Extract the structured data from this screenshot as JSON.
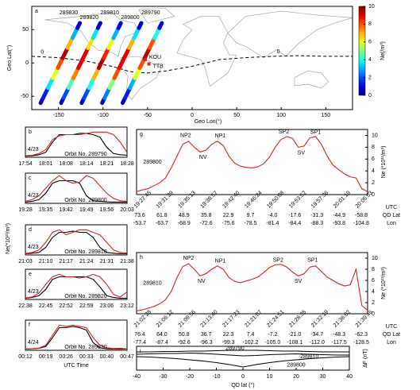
{
  "chart_data": [
    {
      "type": "map",
      "label": "a",
      "xlabel": "Geo Lon(°)",
      "ylabel": "Geo Lat(°)",
      "xlim": [
        -180,
        180
      ],
      "ylim": [
        -70,
        85
      ],
      "xticks": [
        -150,
        -100,
        -50,
        0,
        50,
        100,
        150
      ],
      "yticks": [
        -50,
        0,
        50
      ],
      "series": [
        {
          "name": "289830",
          "x": [
            -170,
            -164.5,
            -159,
            -153.5,
            -148,
            -142.5,
            -137,
            -131.5,
            -126
          ],
          "y": [
            -60,
            -45,
            -30,
            -15,
            0,
            15,
            30,
            45,
            60
          ],
          "ne": [
            0.5,
            1.5,
            3.5,
            6,
            8,
            9.5,
            7,
            3,
            1
          ]
        },
        {
          "name": "289820",
          "x": [
            -147,
            -141.5,
            -136,
            -130.5,
            -125,
            -119.5,
            -114,
            -108.5,
            -103
          ],
          "y": [
            -60,
            -45,
            -30,
            -15,
            0,
            15,
            30,
            45,
            60
          ],
          "ne": [
            0.5,
            2,
            4.5,
            7.5,
            9,
            9,
            6.5,
            3.5,
            0.8
          ]
        },
        {
          "name": "289810",
          "x": [
            -124,
            -118.5,
            -113,
            -107.5,
            -102,
            -96.5,
            -91,
            -85.5,
            -80
          ],
          "y": [
            -60,
            -45,
            -30,
            -15,
            0,
            15,
            30,
            45,
            60
          ],
          "ne": [
            0.6,
            2,
            4,
            7,
            9.5,
            8.5,
            6,
            3,
            1
          ]
        },
        {
          "name": "289800",
          "x": [
            -101,
            -95.5,
            -90,
            -84.5,
            -79,
            -73.5,
            -68,
            -62.5,
            -57
          ],
          "y": [
            -60,
            -45,
            -30,
            -15,
            0,
            15,
            30,
            45,
            60
          ],
          "ne": [
            0.5,
            2.5,
            5,
            8,
            9,
            9,
            7,
            3.5,
            1
          ]
        },
        {
          "name": "289790",
          "x": [
            -78,
            -72.5,
            -67,
            -61.5,
            -56,
            -50.5,
            -45,
            -39.5,
            -34
          ],
          "y": [
            -60,
            -45,
            -30,
            -15,
            0,
            15,
            30,
            45,
            60
          ],
          "ne": [
            0.5,
            1.5,
            3,
            6,
            8,
            9.5,
            8,
            4,
            1
          ]
        }
      ],
      "stations": [
        {
          "name": "KOU",
          "lon": -52.7,
          "lat": 5.2,
          "color": "#e0201b"
        },
        {
          "name": "TTB",
          "lon": -48.5,
          "lat": -1.4,
          "color": "#e0201b"
        }
      ],
      "dip_equator": {
        "label": "0",
        "x": [
          -180,
          -150,
          -120,
          -90,
          -70,
          -50,
          -30,
          0,
          30,
          60,
          90,
          120,
          150,
          180
        ],
        "y": [
          10,
          8,
          3,
          -5,
          -13,
          -15,
          -12,
          -5,
          5,
          8,
          10,
          11,
          10,
          10
        ]
      },
      "colorbar": {
        "label": "Ne(/m³)",
        "lim": [
          0,
          10
        ],
        "ticks": [
          0,
          2,
          4,
          6,
          8,
          10
        ],
        "colormap": "jet"
      }
    },
    {
      "type": "line",
      "label": "b",
      "date": "4/23",
      "annotation": "Orbit No. 289790",
      "categories": [
        "17:54",
        null,
        null,
        "18:01",
        null,
        null,
        "18:08",
        null,
        null,
        "18:14",
        null,
        null,
        "18:21",
        null,
        null,
        "18:28"
      ],
      "series": [
        {
          "color": "#000000",
          "values": [
            0.5,
            0.6,
            1,
            2,
            6,
            9,
            9,
            9,
            9.5,
            9.5,
            9,
            8,
            4,
            1.5,
            1,
            0.8
          ]
        },
        {
          "color": "#e0201b",
          "values": [
            0.6,
            0.8,
            1.5,
            3,
            7,
            8.5,
            9,
            9,
            9,
            9.5,
            10,
            10,
            10,
            9,
            6,
            2
          ]
        }
      ],
      "ylim": [
        0,
        12
      ]
    },
    {
      "type": "line",
      "label": "c",
      "date": "4/23",
      "annotation": "Orbit No. 289800",
      "categories": [
        "19:28",
        null,
        null,
        "19:35",
        null,
        null,
        "19:42",
        null,
        null,
        "19:49",
        null,
        null,
        "19:56",
        null,
        null,
        "20:03"
      ],
      "series": [
        {
          "color": "#000000",
          "values": [
            0.5,
            0.8,
            1.5,
            4,
            8,
            9,
            9,
            9,
            8,
            3,
            1,
            0.8,
            0.6,
            0.5,
            0.5,
            0.5
          ]
        },
        {
          "color": "#e0201b",
          "values": [
            0.8,
            1.5,
            3,
            6,
            9,
            11,
            9,
            8,
            8.5,
            11,
            10,
            7,
            4,
            2,
            1,
            0.8
          ]
        }
      ],
      "ylim": [
        0,
        12
      ]
    },
    {
      "type": "line",
      "label": "d",
      "date": "4/23",
      "annotation": "Orbit No. 289810",
      "ylabel": "Ne(*10¹¹/m³)",
      "categories": [
        "21:03",
        null,
        null,
        "21:10",
        null,
        null,
        "21:17",
        null,
        null,
        "21:24",
        null,
        null,
        "21:31",
        null,
        null,
        "21:38"
      ],
      "series": [
        {
          "color": "#000000",
          "values": [
            0.5,
            0.7,
            1,
            3,
            7,
            9,
            9,
            9.5,
            9,
            9,
            7,
            3,
            1,
            0.7,
            0.5,
            0.5
          ]
        },
        {
          "color": "#e0201b",
          "values": [
            0.6,
            1,
            2,
            5,
            9,
            10,
            8,
            9,
            10,
            10,
            9,
            8,
            5,
            2,
            1,
            0.8
          ]
        }
      ],
      "ylim": [
        0,
        12
      ]
    },
    {
      "type": "line",
      "label": "e",
      "date": "4/23",
      "annotation": "Orbit No. 289820",
      "categories": [
        "22:38",
        null,
        null,
        "22:45",
        null,
        null,
        "22:52",
        null,
        null,
        "22:59",
        null,
        null,
        "23:06",
        null,
        null,
        "23:12"
      ],
      "series": [
        {
          "color": "#000000",
          "values": [
            0.5,
            0.8,
            1.5,
            4,
            8,
            9,
            9,
            9,
            9,
            9,
            8,
            5,
            1.5,
            0.8,
            0.5,
            0.5
          ]
        },
        {
          "color": "#e0201b",
          "values": [
            0.6,
            1,
            2.5,
            6,
            9,
            10,
            9,
            9,
            8.5,
            9,
            10,
            9,
            6,
            2,
            1,
            3
          ]
        }
      ],
      "ylim": [
        0,
        12
      ]
    },
    {
      "type": "line",
      "label": "f",
      "date": "4/24",
      "annotation": "Orbit No. 289830",
      "xlabel": "UTC Time",
      "categories": [
        "00:12",
        null,
        null,
        "00:19",
        null,
        null,
        "00:26",
        null,
        null,
        "00:33",
        null,
        null,
        "00:40",
        null,
        null,
        "00:47"
      ],
      "series": [
        {
          "color": "#000000",
          "values": [
            0.5,
            0.6,
            0.8,
            1.5,
            5,
            9,
            9,
            9.5,
            9,
            8,
            3,
            1,
            0.6,
            0.5,
            0.5,
            0.5
          ]
        },
        {
          "color": "#e0201b",
          "values": [
            0.5,
            0.6,
            0.9,
            2,
            6,
            10,
            9.5,
            10,
            9.5,
            9,
            5,
            2,
            1,
            0.7,
            0.8,
            0.5
          ]
        }
      ],
      "ylim": [
        0,
        12
      ]
    },
    {
      "type": "line",
      "label": "g",
      "orbit": "289800",
      "yaxis": "right",
      "ylabel": "Ne (*10¹¹/m³)",
      "x": [
        -40,
        -38,
        -36,
        -34,
        -32,
        -30,
        -28,
        -26,
        -24,
        -22,
        -20,
        -18,
        -16,
        -14,
        -12,
        -10,
        -8,
        -6,
        -4,
        -2,
        0,
        2,
        4,
        6,
        8,
        10,
        12,
        14,
        16,
        18,
        20,
        22,
        24,
        26,
        28,
        30,
        32,
        34,
        36,
        38,
        40
      ],
      "series": [
        {
          "color": "#e0201b",
          "values": [
            0.5,
            0.8,
            1.0,
            1.5,
            2.0,
            2.8,
            4.5,
            6.5,
            8.5,
            9.0,
            8.0,
            7.2,
            7.5,
            8.5,
            9.0,
            8.3,
            6.5,
            5.3,
            4.8,
            4.6,
            4.5,
            4.7,
            5.2,
            6.3,
            8.0,
            9.3,
            9.8,
            9.5,
            8.0,
            8.2,
            9.6,
            9.8,
            8.5,
            6.5,
            5.0,
            4.2,
            3.5,
            3.0,
            2.8,
            1.0,
            0.5
          ]
        }
      ],
      "xlim": [
        -40,
        40
      ],
      "ylim": [
        0,
        11
      ],
      "yticks": [
        0,
        2,
        4,
        6,
        8,
        10
      ],
      "annotations": [
        "NP2",
        "NV",
        "NP1",
        "SP2",
        "SV",
        "SP1"
      ],
      "tick_rows": [
        {
          "name": "UTC",
          "labels": [
            "19:27:45",
            "19:31:29",
            "19:35:13",
            "19:38:57",
            "19:42:40",
            "19:46:24",
            "19:50:08",
            "19:53:52",
            "19:57:36",
            "20:01:19",
            "20:05:03"
          ]
        },
        {
          "name": "QD Lat",
          "labels": [
            "73.6",
            "61.8",
            "48.9",
            "35.8",
            "22.9",
            "9.7",
            "-4.0",
            "-17.6",
            "-31.3",
            "-44.9",
            "-58.8"
          ]
        },
        {
          "name": "Lon",
          "labels": [
            "-53.7",
            "-63.7",
            "-68.9",
            "-72.6",
            "-75.6",
            "-78.5",
            "-81.4",
            "-84.4",
            "-88.3",
            "-93.8",
            "-104.8"
          ]
        }
      ]
    },
    {
      "type": "line",
      "label": "h",
      "orbit": "289810",
      "yaxis": "right",
      "ylabel": "Ne (*10¹¹/m³)",
      "x": [
        -40,
        -38,
        -36,
        -34,
        -32,
        -30,
        -28,
        -26,
        -24,
        -22,
        -20,
        -18,
        -16,
        -14,
        -12,
        -10,
        -8,
        -6,
        -4,
        -2,
        0,
        2,
        4,
        6,
        8,
        10,
        12,
        14,
        16,
        18,
        20,
        22,
        24,
        26,
        28,
        30,
        32,
        34,
        36,
        38,
        40
      ],
      "series": [
        {
          "color": "#e0201b",
          "values": [
            0.5,
            0.7,
            1.0,
            1.3,
            1.8,
            2.5,
            4.0,
            6.5,
            8.5,
            9.0,
            8.0,
            6.8,
            7.2,
            8.0,
            8.6,
            8.0,
            6.5,
            5.8,
            5.6,
            5.9,
            6.2,
            6.6,
            7.4,
            8.3,
            8.8,
            8.9,
            8.4,
            7.5,
            6.8,
            7.2,
            8.4,
            8.6,
            7.6,
            6.6,
            6.0,
            5.4,
            5.0,
            5.2,
            8.0,
            1.5,
            0.6
          ]
        }
      ],
      "xlim": [
        -40,
        40
      ],
      "ylim": [
        0,
        11
      ],
      "yticks": [
        0,
        2,
        4,
        6,
        8,
        10
      ],
      "annotations": [
        "NP2",
        "NV",
        "NP1",
        "SP2",
        "SV",
        "SP1"
      ],
      "tick_rows": [
        {
          "name": "UTC",
          "labels": [
            "21:02:28",
            "21:06:12",
            "21:09:56",
            "21:13:40",
            "21:17:23",
            "21:21:07",
            "21:24:51",
            "21:28:35",
            "21:32:19",
            "21:36:02",
            "21:39:46"
          ]
        },
        {
          "name": "QD Lat",
          "labels": [
            "76.4",
            "64.0",
            "50.8",
            "36.7",
            "22.3",
            "7.4",
            "-7.2",
            "-21.0",
            "-34.7",
            "-48.3",
            "-62.3"
          ]
        },
        {
          "name": "Lon",
          "labels": [
            "-77.4",
            "-87.4",
            "-92.6",
            "-96.3",
            "-99.3",
            "-102.2",
            "-105.0",
            "-108.1",
            "-112.0",
            "-117.5",
            "-128.5"
          ]
        }
      ]
    },
    {
      "type": "line",
      "label": "i",
      "yaxis": "right",
      "ylabel": "ΔF (nT)",
      "xlabel": "QD lat (°)",
      "x": [
        -40,
        -35,
        -30,
        -25,
        -20,
        -15,
        -10,
        -5,
        0,
        5,
        10,
        15,
        20,
        25,
        30,
        35,
        40
      ],
      "series": [
        {
          "name": "289790",
          "color": "#000000",
          "values": [
            0.3,
            0.3,
            0.35,
            0.35,
            0.4,
            0.4,
            0.45,
            0.5,
            0.5,
            0.5,
            0.45,
            0.4,
            0.4,
            0.35,
            0.3,
            0.3,
            0.3
          ]
        },
        {
          "name": "289810",
          "color": "#000000",
          "values": [
            0,
            0.05,
            0.1,
            0.1,
            0.15,
            0.1,
            0,
            -0.1,
            -0.2,
            -0.15,
            -0.05,
            0,
            0.05,
            0,
            -0.05,
            -0.1,
            -0.1
          ]
        },
        {
          "name": "289800",
          "color": "#000000",
          "values": [
            -0.3,
            -0.35,
            -0.45,
            -0.55,
            -0.7,
            -0.85,
            -1.05,
            -1.3,
            -1.6,
            -1.3,
            -1.05,
            -0.85,
            -0.7,
            -0.55,
            -0.45,
            -0.35,
            -0.3
          ]
        }
      ],
      "xlim": [
        -40,
        40
      ],
      "ylim": [
        -2,
        1
      ],
      "xticks": [
        -40,
        -30,
        -20,
        -10,
        0,
        10,
        20,
        30,
        40
      ]
    }
  ]
}
